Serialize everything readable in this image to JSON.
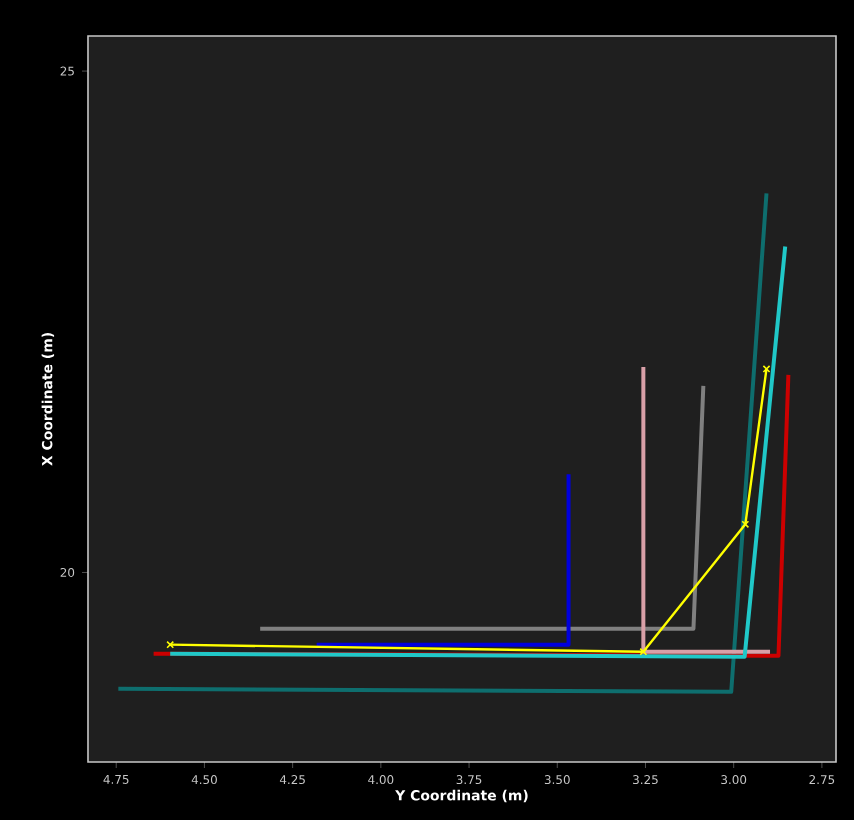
{
  "chart_data": {
    "type": "line",
    "xlabel": "Y Coordinate (m)",
    "ylabel": "X Coordinate (m)",
    "xlim": [
      4.83,
      2.71
    ],
    "ylim": [
      18.11,
      25.35
    ],
    "xticks": [
      {
        "value": 4.75,
        "label": "4.75"
      },
      {
        "value": 4.5,
        "label": "4.50"
      },
      {
        "value": 4.25,
        "label": "4.25"
      },
      {
        "value": 4.0,
        "label": "4.00"
      },
      {
        "value": 3.75,
        "label": "3.75"
      },
      {
        "value": 3.5,
        "label": "3.50"
      },
      {
        "value": 3.25,
        "label": "3.25"
      },
      {
        "value": 3.0,
        "label": "3.00"
      },
      {
        "value": 2.75,
        "label": "2.75"
      }
    ],
    "yticks": [
      20,
      25
    ],
    "grid": false,
    "line_style": "solid",
    "series": [
      {
        "color": "#0e6e6e",
        "x": [
          4.744,
          3.007,
          2.907
        ],
        "values": [
          18.84,
          18.81,
          23.78
        ]
      },
      {
        "color": "#808080",
        "x": [
          4.342,
          3.114,
          3.086
        ],
        "values": [
          19.44,
          19.44,
          21.86
        ]
      },
      {
        "color": "#0000dd",
        "x": [
          4.182,
          3.468,
          3.468
        ],
        "values": [
          19.28,
          19.28,
          20.98
        ]
      },
      {
        "color": "#cc0000",
        "x": [
          4.644,
          2.873,
          2.845
        ],
        "values": [
          19.19,
          19.17,
          21.97
        ]
      },
      {
        "color": "#d9a0a8",
        "x": [
          3.256,
          3.256,
          2.897
        ],
        "values": [
          22.05,
          19.21,
          19.21
        ]
      },
      {
        "color": "#20c8c8",
        "x": [
          4.597,
          2.969,
          2.854
        ],
        "values": [
          19.19,
          19.16,
          23.25
        ]
      },
      {
        "color": "#ffff00",
        "marker": "cross",
        "x": [
          4.597,
          3.256,
          2.967,
          2.907
        ],
        "values": [
          19.28,
          19.21,
          20.48,
          22.03
        ]
      }
    ]
  }
}
